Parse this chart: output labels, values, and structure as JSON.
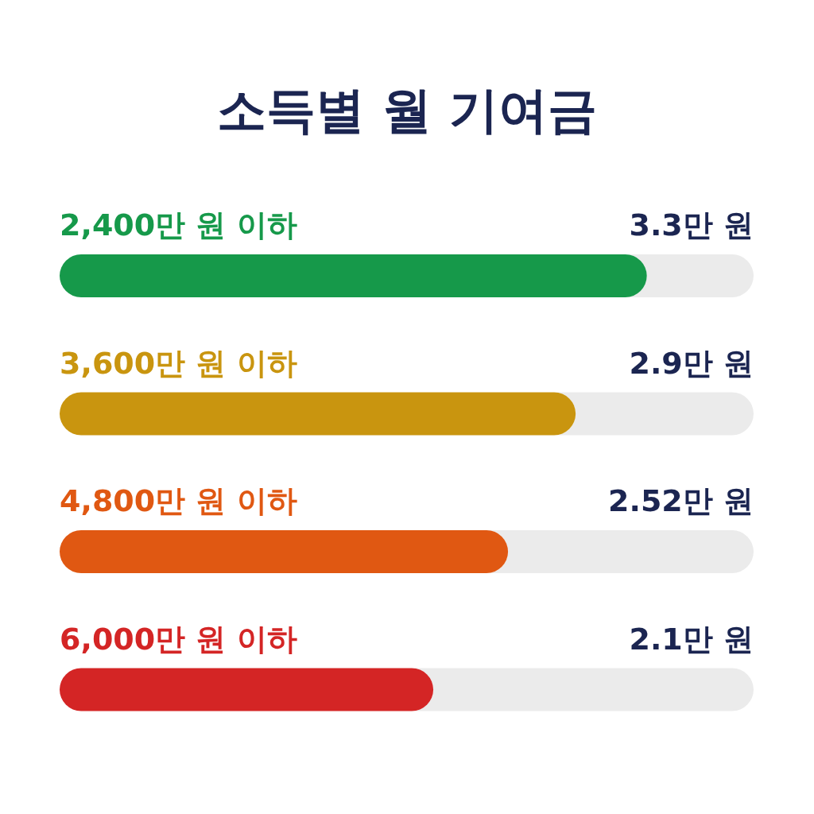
{
  "chart_data": {
    "type": "bar",
    "orientation": "horizontal",
    "title": "소득별 월 기여금",
    "categories": [
      "2,400만 원 이하",
      "3,600만 원 이하",
      "4,800만 원 이하",
      "6,000만 원 이하"
    ],
    "values": [
      3.3,
      2.9,
      2.52,
      2.1
    ],
    "value_labels": [
      "3.3만 원",
      "2.9만 원",
      "2.52만 원",
      "2.1만 원"
    ],
    "colors": [
      "#16994a",
      "#c9950f",
      "#e05812",
      "#d42525"
    ],
    "xlim": [
      0,
      3.9
    ]
  }
}
